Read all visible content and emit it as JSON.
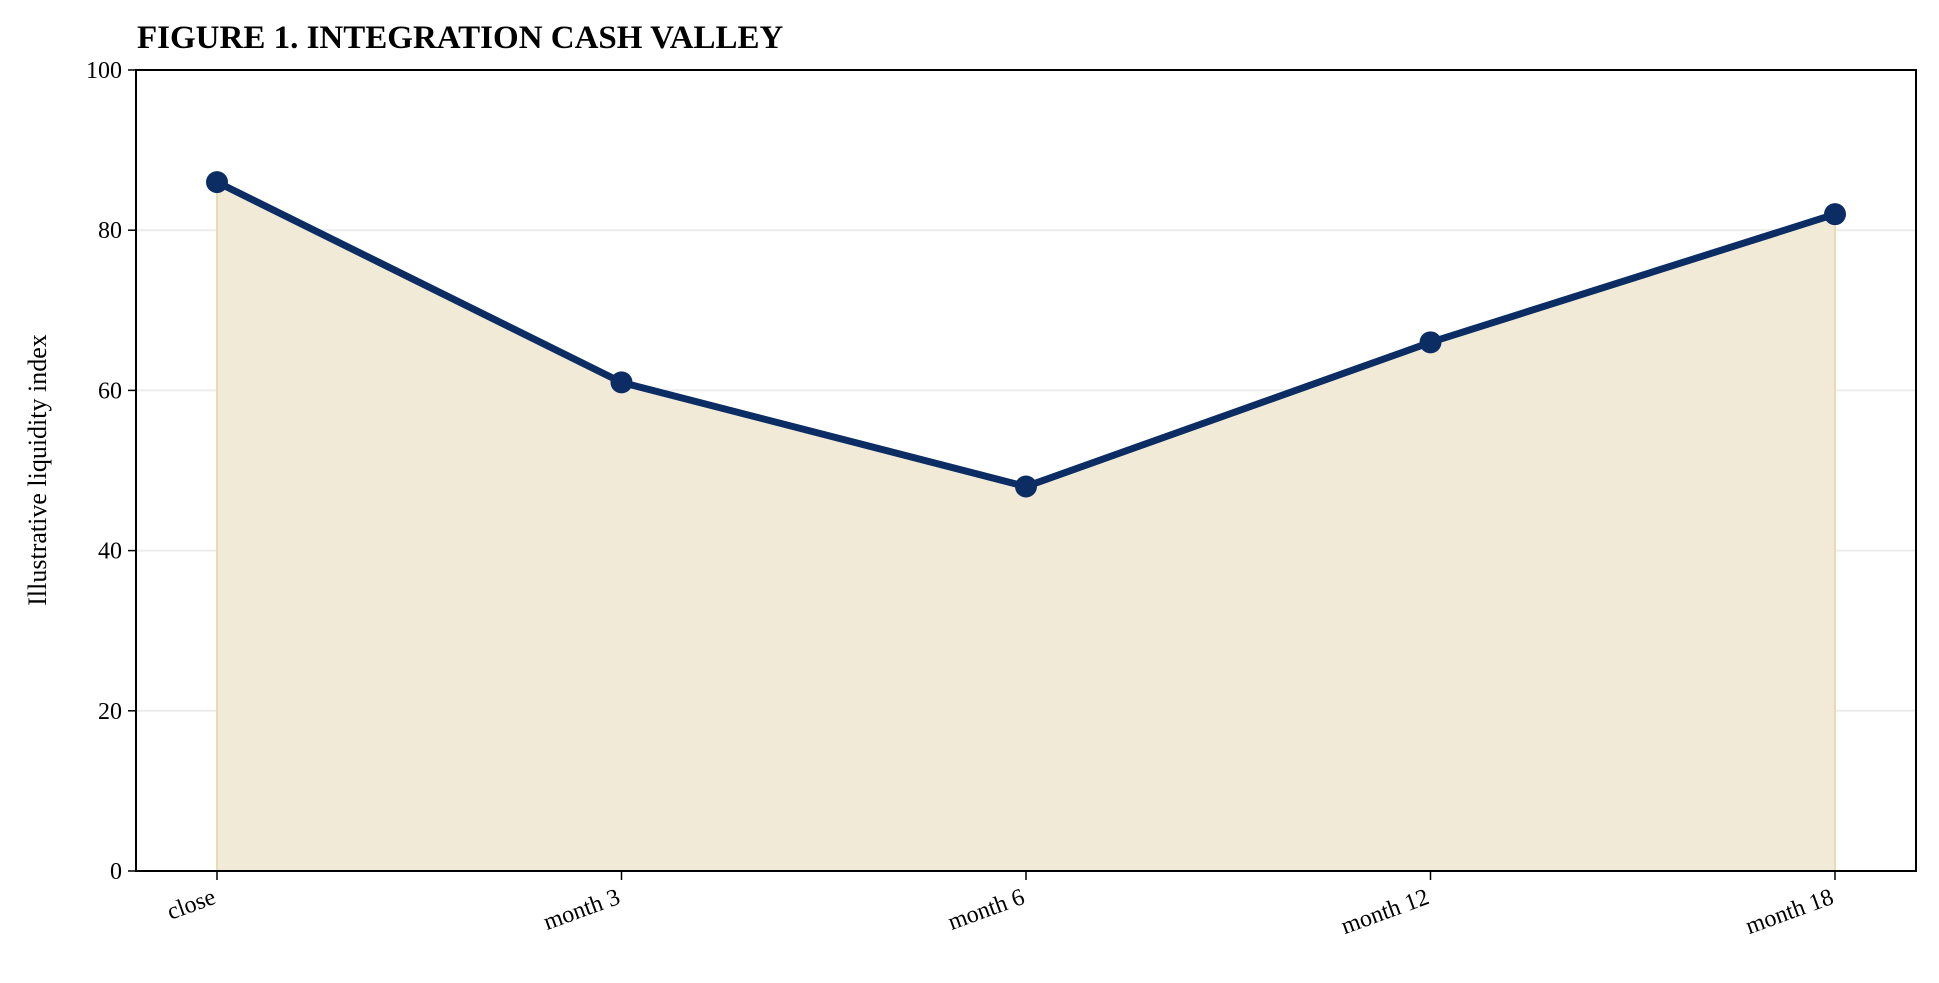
{
  "chart_data": {
    "type": "area",
    "title": "FIGURE 1. INTEGRATION CASH VALLEY",
    "xlabel": "",
    "ylabel": "Illustrative liquidity index",
    "categories": [
      "close",
      "month 3",
      "month 6",
      "month 12",
      "month 18"
    ],
    "series": [
      {
        "values": [
          86,
          61,
          48,
          66,
          82
        ],
        "line_color": "#0b2d64",
        "fill_color": "#f1ead6"
      }
    ],
    "ylim": [
      0,
      100
    ],
    "yticks": [
      0,
      20,
      40,
      60,
      80,
      100
    ],
    "grid": "horizontal",
    "legend": "none"
  }
}
